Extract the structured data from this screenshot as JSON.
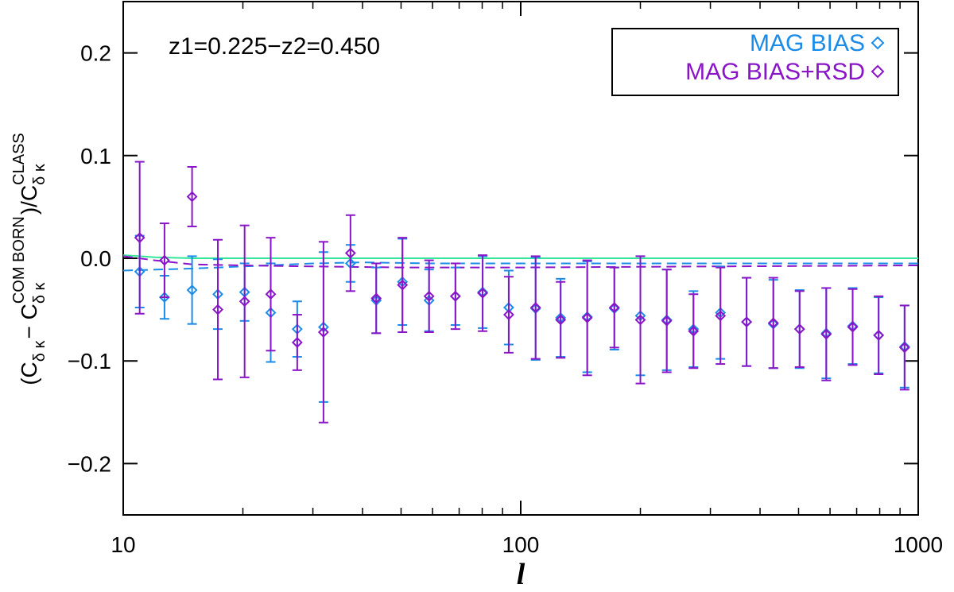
{
  "chart_data": {
    "type": "errorbar-scatter",
    "annotation": "z1=0.225−z2=0.450",
    "xlabel": "l",
    "ylabel": [
      {
        "base": "(C",
        "sub": "δ κ"
      },
      {
        "base": " − C",
        "sub": "δ κ",
        "sup": "COM BORN"
      },
      {
        "base": ")/C",
        "sub": "δ κ",
        "sup": "CLASS"
      }
    ],
    "xlog": true,
    "xlim": [
      10,
      1000
    ],
    "xticks": [
      10,
      100,
      1000
    ],
    "ylim": [
      -0.25,
      0.25
    ],
    "yticks": [
      {
        "value": -0.2,
        "label": "−0.2"
      },
      {
        "value": -0.1,
        "label": "−0.1"
      },
      {
        "value": 0,
        "label": "0.0"
      },
      0.1,
      0.2
    ],
    "legend": "upper right",
    "x": [
      11,
      12.7,
      14.9,
      17.3,
      20.2,
      23.5,
      27.4,
      31.9,
      37.3,
      43.3,
      50.4,
      58.8,
      68.5,
      80.2,
      93.3,
      109,
      126,
      147,
      172,
      200,
      233,
      272,
      318,
      370,
      432,
      503,
      587,
      684,
      795,
      924
    ],
    "series": [
      {
        "name": "MAG BIAS",
        "color": "#1a8ce8",
        "values": [
          -0.013,
          -0.038,
          -0.031,
          -0.035,
          -0.033,
          -0.053,
          -0.069,
          -0.067,
          -0.005,
          -0.041,
          -0.023,
          -0.041,
          -0.037,
          -0.033,
          -0.048,
          -0.049,
          -0.058,
          -0.057,
          -0.049,
          -0.056,
          -0.06,
          -0.069,
          -0.053,
          -0.062,
          -0.064,
          -0.069,
          -0.073,
          -0.066,
          -0.075,
          -0.086
        ],
        "errors": [
          0.035,
          0.021,
          0.033,
          0.034,
          0.028,
          0.048,
          0.027,
          0.073,
          0.018,
          0.032,
          0.042,
          0.03,
          0.028,
          0.035,
          0.036,
          0.05,
          0.038,
          0.054,
          0.04,
          0.058,
          0.049,
          0.037,
          0.045,
          0.043,
          0.043,
          0.038,
          0.044,
          0.037,
          0.037,
          0.04
        ]
      },
      {
        "name": "MAG BIAS+RSD",
        "color": "#8a14c8",
        "values": [
          0.02,
          -0.002,
          0.06,
          -0.05,
          -0.042,
          -0.035,
          -0.082,
          -0.072,
          0.005,
          -0.039,
          -0.026,
          -0.037,
          -0.037,
          -0.034,
          -0.055,
          -0.048,
          -0.06,
          -0.058,
          -0.048,
          -0.06,
          -0.061,
          -0.071,
          -0.056,
          -0.062,
          -0.063,
          -0.069,
          -0.074,
          -0.067,
          -0.075,
          -0.087
        ],
        "errors": [
          0.074,
          0.036,
          0.029,
          0.068,
          0.074,
          0.055,
          0.027,
          0.088,
          0.037,
          0.034,
          0.046,
          0.035,
          0.032,
          0.037,
          0.037,
          0.05,
          0.037,
          0.056,
          0.039,
          0.062,
          0.05,
          0.036,
          0.047,
          0.043,
          0.044,
          0.037,
          0.045,
          0.037,
          0.038,
          0.041
        ]
      }
    ],
    "lines": [
      {
        "color": "#33e69a",
        "dashed": false,
        "x": [
          10,
          11,
          12,
          15,
          1000
        ],
        "values": [
          0.003,
          0.002,
          0.001,
          0,
          0
        ]
      },
      {
        "color": "#1a8ce8",
        "dashed": true,
        "x": [
          10,
          15,
          20,
          30,
          40,
          60,
          100,
          1000
        ],
        "values": [
          -0.012,
          -0.01,
          -0.008,
          -0.005,
          -0.004,
          -0.005,
          -0.005,
          -0.005
        ]
      },
      {
        "color": "#8a14c8",
        "dashed": true,
        "x": [
          10,
          12,
          15,
          20,
          30,
          50,
          100,
          300,
          1000
        ],
        "values": [
          0.002,
          -0.002,
          -0.006,
          -0.007,
          -0.008,
          -0.009,
          -0.009,
          -0.008,
          -0.007
        ]
      }
    ]
  }
}
